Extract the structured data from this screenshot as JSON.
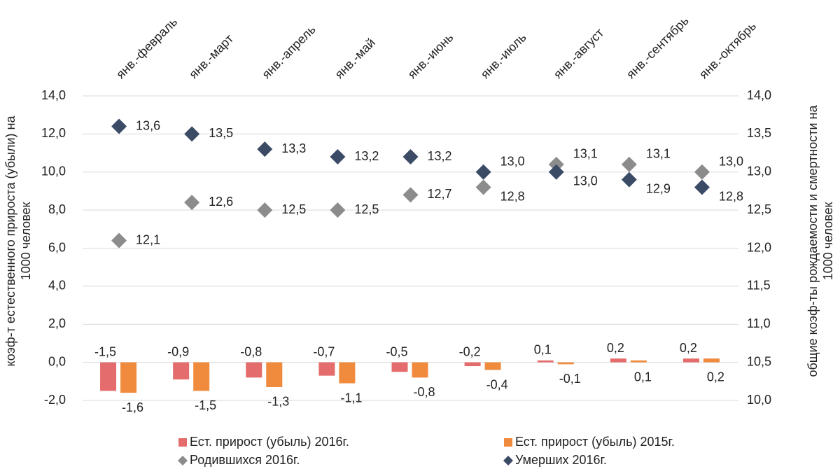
{
  "chart_data": {
    "type": "bar-scatter",
    "categories": [
      "янв.-февраль",
      "янв.-март",
      "янв.-апрель",
      "янв.-май",
      "янв.-июнь",
      "янв.-июль",
      "янв.-август",
      "янв.-сентябрь",
      "янв.-октябрь"
    ],
    "y_label": [
      "коэф-т естественного прироста (убыли) на",
      "1000 человек"
    ],
    "y2_label": [
      "общие коэф-ты рождаемости и смертности на",
      "1000 человек"
    ],
    "ylim": [
      -2,
      14
    ],
    "yticks": [
      {
        "value": -2,
        "label": "-2,0"
      },
      {
        "value": 0,
        "label": "0,0"
      },
      {
        "value": 2,
        "label": "2,0"
      },
      {
        "value": 4,
        "label": "4,0"
      },
      {
        "value": 6,
        "label": "6,0"
      },
      {
        "value": 8,
        "label": "8,0"
      },
      {
        "value": 10,
        "label": "10,0"
      },
      {
        "value": 12,
        "label": "12,0"
      },
      {
        "value": 14,
        "label": "14,0"
      }
    ],
    "y2lim": [
      10,
      14
    ],
    "y2ticks": [
      {
        "value": 10,
        "label": "10,0"
      },
      {
        "value": 10.5,
        "label": "10,5"
      },
      {
        "value": 11,
        "label": "11,0"
      },
      {
        "value": 11.5,
        "label": "11,5"
      },
      {
        "value": 12,
        "label": "12,0"
      },
      {
        "value": 12.5,
        "label": "12,5"
      },
      {
        "value": 13,
        "label": "13,0"
      },
      {
        "value": 13.5,
        "label": "13,5"
      },
      {
        "value": 14,
        "label": "14,0"
      }
    ],
    "grid": true,
    "series": [
      {
        "name": "Ест. прирост (убыль) 2016г.",
        "kind": "bar",
        "color": "#e46c6c",
        "values": [
          -1.5,
          -0.9,
          -0.8,
          -0.7,
          -0.5,
          -0.2,
          0.1,
          0.2,
          0.2
        ],
        "value_labels": [
          "-1,5",
          "-0,9",
          "-0,8",
          "-0,7",
          "-0,5",
          "-0,2",
          "0,1",
          "0,2",
          "0,2"
        ]
      },
      {
        "name": "Ест. прирост (убыль) 2015г.",
        "kind": "bar",
        "color": "#f08a3c",
        "values": [
          -1.6,
          -1.5,
          -1.3,
          -1.1,
          -0.8,
          -0.4,
          -0.1,
          0.1,
          0.2
        ],
        "value_labels": [
          "-1,6",
          "-1,5",
          "-1,3",
          "-1,1",
          "-0,8",
          "-0,4",
          "-0,1",
          "0,1",
          "0,2"
        ]
      },
      {
        "name": "Родившихся 2016г.",
        "kind": "diamond",
        "axis": "y2",
        "color": "#8c8c8c",
        "values": [
          12.1,
          12.6,
          12.5,
          12.5,
          12.7,
          12.8,
          13.1,
          13.1,
          13.0
        ],
        "value_labels": [
          "12,1",
          "12,6",
          "12,5",
          "12,5",
          "12,7",
          "12,8",
          "13,1",
          "13,1",
          "13,0"
        ]
      },
      {
        "name": "Умерших 2016г.",
        "kind": "diamond",
        "axis": "y2",
        "color": "#3b4b66",
        "values": [
          13.6,
          13.5,
          13.3,
          13.2,
          13.2,
          13.0,
          13.0,
          12.9,
          12.8
        ],
        "value_labels": [
          "13,6",
          "13,5",
          "13,3",
          "13,2",
          "13,2",
          "13,0",
          "13,0",
          "12,9",
          "12,8"
        ]
      }
    ]
  }
}
